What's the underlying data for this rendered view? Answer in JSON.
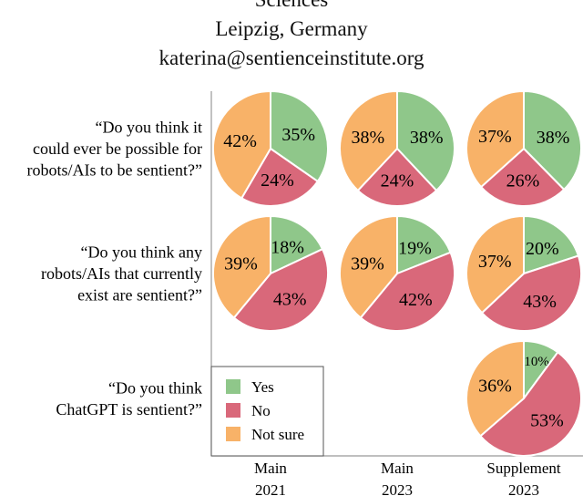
{
  "header": {
    "line1": "Sciences",
    "line2": "Leipzig, Germany",
    "line3": "katerina@sentienceinstitute.org"
  },
  "chart_data": {
    "type": "pie",
    "colors": {
      "Yes": "#8fc78a",
      "No": "#d9687a",
      "Not sure": "#f8b268"
    },
    "legend": {
      "placement": "bottom-left",
      "entries": [
        "Yes",
        "No",
        "Not sure"
      ]
    },
    "columns": [
      {
        "line1": "Main",
        "line2": "2021"
      },
      {
        "line1": "Main",
        "line2": "2023"
      },
      {
        "line1": "Supplement",
        "line2": "2023"
      }
    ],
    "rows": [
      {
        "question_lines": [
          "“Do you think it",
          "could ever be possible for",
          "robots/AIs to be sentient?”"
        ],
        "pies": [
          {
            "Yes": 35,
            "No": 24,
            "Not sure": 42
          },
          {
            "Yes": 38,
            "No": 24,
            "Not sure": 38
          },
          {
            "Yes": 38,
            "No": 26,
            "Not sure": 37
          }
        ]
      },
      {
        "question_lines": [
          "“Do you think any",
          "robots/AIs that currently",
          "exist are sentient?”"
        ],
        "pies": [
          {
            "Yes": 18,
            "No": 43,
            "Not sure": 39
          },
          {
            "Yes": 19,
            "No": 42,
            "Not sure": 39
          },
          {
            "Yes": 20,
            "No": 43,
            "Not sure": 37
          }
        ]
      },
      {
        "question_lines": [
          "“Do you think",
          "ChatGPT is sentient?”"
        ],
        "pies": [
          null,
          null,
          {
            "Yes": 10,
            "No": 53,
            "Not sure": 36
          }
        ]
      }
    ]
  }
}
